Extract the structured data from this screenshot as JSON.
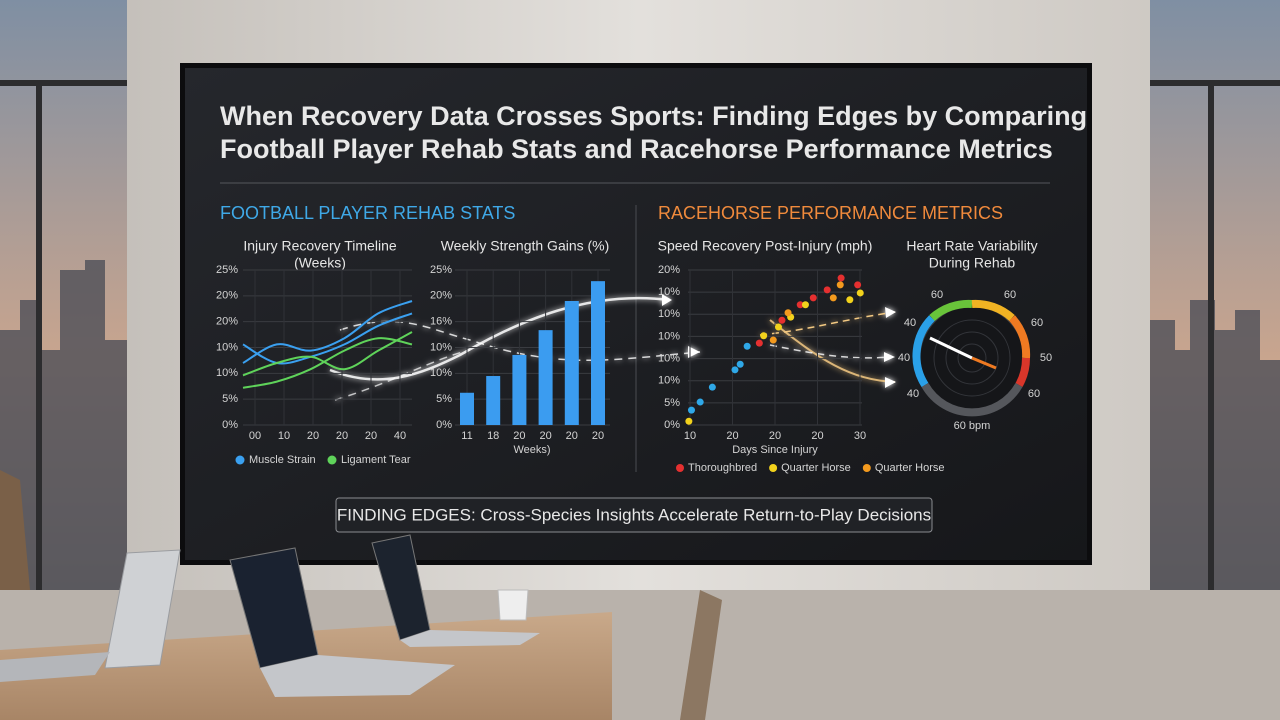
{
  "header": {
    "title_line1": "When Recovery Data Crosses Sports: Finding Edges by Comparing",
    "title_line2": "Football Player Rehab Stats and Racehorse Performance Metrics"
  },
  "football": {
    "heading": "FOOTBALL PLAYER REHAB STATS",
    "recovery": {
      "title1": "Injury Recovery Timeline",
      "title2": "(Weeks)",
      "yticks": [
        "25%",
        "20%",
        "20%",
        "10%",
        "10%",
        "5%",
        "0%"
      ],
      "xticks": [
        "00",
        "10",
        "20",
        "20",
        "20",
        "40"
      ],
      "ylim": [
        0,
        25
      ],
      "series": [
        {
          "name": "Muscle Strain",
          "color": "#3aa0f0",
          "lines": [
            [
              10,
              13,
              12,
              14,
              18,
              20
            ],
            [
              13,
              10,
              11,
              13,
              16,
              18
            ]
          ]
        },
        {
          "name": "Ligament Tear",
          "color": "#5fd35a",
          "lines": [
            [
              8,
              10,
              11,
              9,
              12,
              15
            ],
            [
              6,
              7,
              9,
              12,
              14,
              13
            ]
          ]
        }
      ]
    },
    "strength": {
      "title": "Weekly Strength Gains (%)",
      "yticks": [
        "25%",
        "20%",
        "16%",
        "10%",
        "10%",
        "5%",
        "0%"
      ],
      "xticks": [
        "11",
        "18",
        "20",
        "20",
        "20",
        "20"
      ],
      "xlabel": "Weeks)",
      "ylim": [
        0,
        25
      ],
      "color": "#3b9cf0",
      "values": [
        5.2,
        7.9,
        11.3,
        15.3,
        20,
        23.2
      ]
    }
  },
  "racehorse": {
    "heading": "RACEHORSE PERFORMANCE METRICS",
    "speed": {
      "title": "Speed Recovery Post-Injury (mph)",
      "yticks": [
        "20%",
        "10%",
        "10%",
        "10%",
        "10%",
        "10%",
        "5%",
        "0%"
      ],
      "xticks": [
        "10",
        "20",
        "20",
        "20",
        "30"
      ],
      "xlabel": "Days Since Injury",
      "xlim": [
        10,
        30
      ],
      "ylim": [
        0,
        25
      ],
      "groups": [
        {
          "color": "#2fa8e8",
          "x": [
            10.4,
            11.4,
            12.8,
            15.4,
            16,
            16.8
          ],
          "y": [
            2.4,
            3.7,
            6.1,
            8.9,
            9.8,
            12.7
          ]
        },
        {
          "name": "Thoroughbred",
          "color": "#e53030",
          "x": [
            18.2,
            20.8,
            22.9,
            24.4,
            26,
            27.6,
            29.5
          ],
          "y": [
            13.2,
            16.9,
            19.4,
            20.5,
            21.8,
            23.7,
            22.6
          ]
        },
        {
          "name": "Quarter Horse",
          "color": "#f2d21c",
          "x": [
            10.1,
            18.7,
            20.4,
            21.8,
            23.5,
            28.6,
            29.8
          ],
          "y": [
            0.6,
            14.4,
            15.8,
            17.4,
            19.4,
            20.2,
            21.3
          ]
        },
        {
          "name": "Quarter Horse",
          "color": "#f39a1e",
          "x": [
            19.8,
            21.5,
            26.7,
            27.5
          ],
          "y": [
            13.7,
            18.1,
            20.5,
            22.6
          ]
        }
      ]
    },
    "hrv": {
      "title1": "Heart Rate Variability",
      "title2": "During Rehab",
      "labels": [
        "60",
        "60",
        "40",
        "60",
        "40",
        "50",
        "40",
        "60"
      ],
      "reading": "60 bpm"
    }
  },
  "banner": "FINDING EDGES: Cross-Species Insights Accelerate Return-to-Play Decisions"
}
